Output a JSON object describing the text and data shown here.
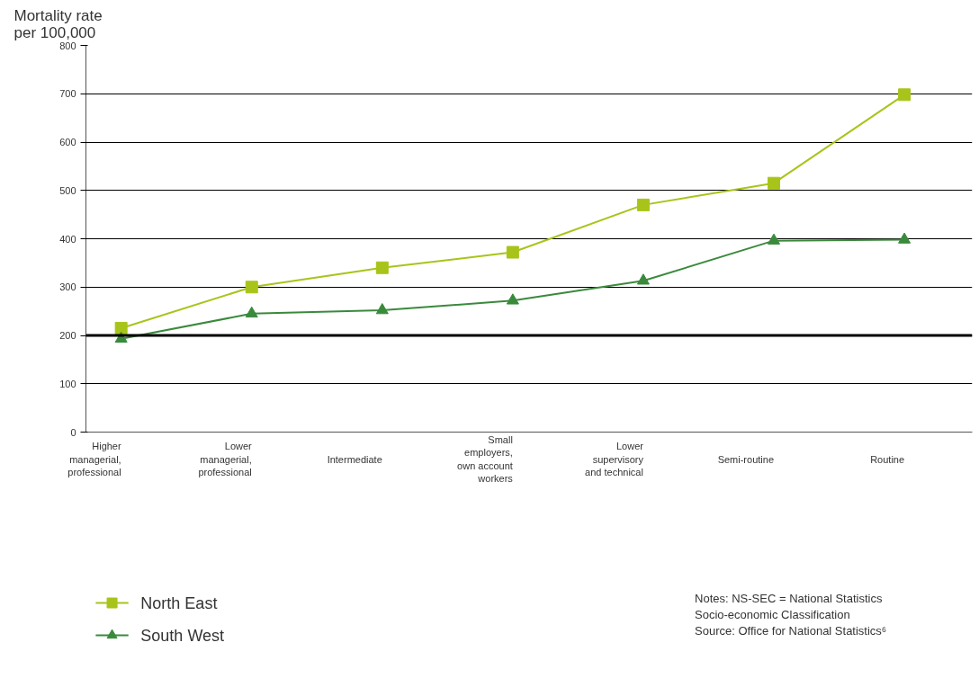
{
  "chart_data": {
    "type": "line",
    "ylabel": "Mortality rate\nper 100,000",
    "categories": [
      "Higher\nmanagerial,\nprofessional",
      "Lower\nmanagerial,\nprofessional",
      "Intermediate",
      "Small\nemployers,\nown account\nworkers",
      "Lower\nsupervisory\nand technical",
      "Semi-routine",
      "Routine"
    ],
    "series": [
      {
        "name": "North East",
        "color": "#a8c41a",
        "marker": "square",
        "values": [
          215,
          300,
          340,
          372,
          470,
          515,
          698
        ]
      },
      {
        "name": "South West",
        "color": "#3a8a3c",
        "marker": "triangle",
        "values": [
          193,
          245,
          252,
          272,
          313,
          396,
          398
        ]
      }
    ],
    "ylim": [
      0,
      800
    ],
    "yticks": [
      0,
      100,
      200,
      300,
      400,
      500,
      600,
      700,
      800
    ],
    "grid": "y",
    "legend": "bottom left",
    "ref_lines": [
      {
        "axis": "y",
        "value": 200,
        "color": "#000000"
      }
    ],
    "annotations": [
      "Notes: NS-SEC = National Statistics\nSocio-economic Classification\nSource: Office for National Statistics⁶"
    ]
  }
}
